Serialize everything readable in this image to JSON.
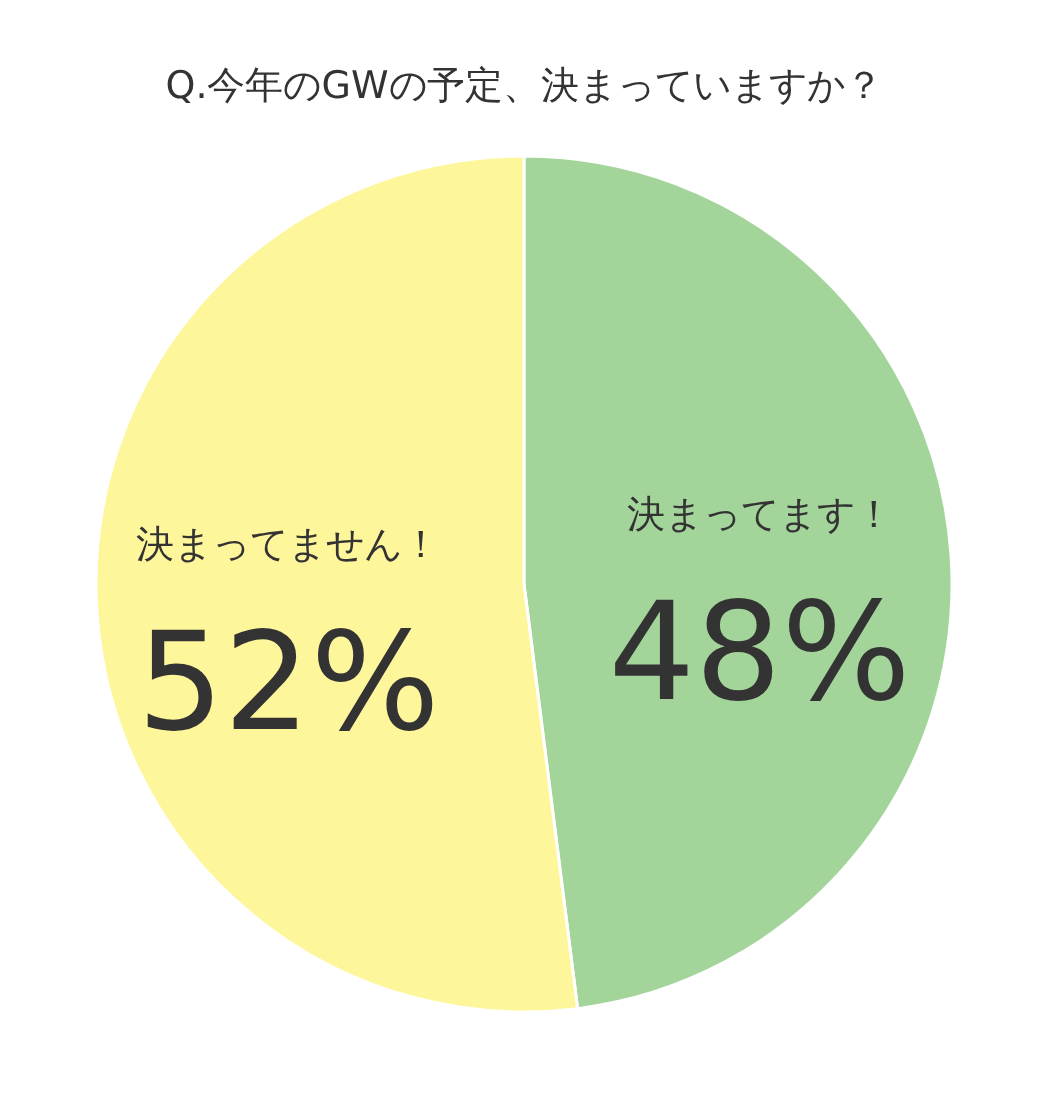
{
  "chart_data": {
    "type": "pie",
    "title": "Q.今年のGWの予定、決まっていますか？",
    "categories": [
      "決まってます！",
      "決まってません！"
    ],
    "values": [
      48,
      52
    ],
    "colors": [
      "#a3d59b",
      "#fef69a"
    ],
    "value_labels": [
      "48%",
      "52%"
    ],
    "legend": false
  }
}
